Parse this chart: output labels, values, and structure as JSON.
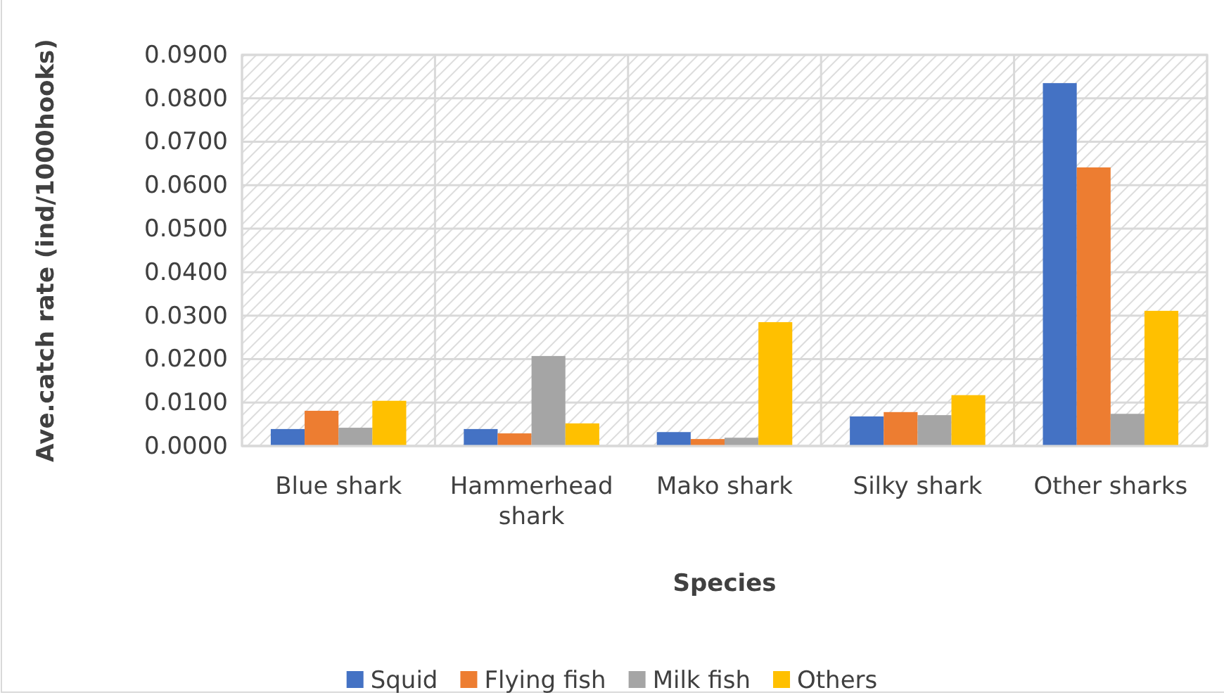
{
  "chart_data": {
    "type": "bar",
    "xlabel": "Species",
    "ylabel": "Ave.catch rate (ind/1000hooks)",
    "categories": [
      "Blue shark",
      "Hammerhead shark",
      "Mako shark",
      "Silky shark",
      "Other sharks"
    ],
    "series": [
      {
        "name": "Squid",
        "color": "#4472c4",
        "values": [
          0.0039,
          0.0039,
          0.0032,
          0.0068,
          0.0835
        ]
      },
      {
        "name": "Flying fish",
        "color": "#ed7d31",
        "values": [
          0.0081,
          0.0029,
          0.0016,
          0.0078,
          0.0641
        ]
      },
      {
        "name": "Milk fish",
        "color": "#a5a5a5",
        "values": [
          0.0042,
          0.0207,
          0.0019,
          0.0071,
          0.0074
        ]
      },
      {
        "name": "Others",
        "color": "#ffc000",
        "values": [
          0.0104,
          0.0052,
          0.0285,
          0.0117,
          0.0311
        ]
      }
    ],
    "ylim": [
      0,
      0.09
    ],
    "yticks": [
      {
        "value": 0,
        "label": "0.0000"
      },
      {
        "value": 0.01,
        "label": "0.0100"
      },
      {
        "value": 0.02,
        "label": "0.0200"
      },
      {
        "value": 0.03,
        "label": "0.0300"
      },
      {
        "value": 0.04,
        "label": "0.0400"
      },
      {
        "value": 0.05,
        "label": "0.0500"
      },
      {
        "value": 0.06,
        "label": "0.0600"
      },
      {
        "value": 0.07,
        "label": "0.0700"
      },
      {
        "value": 0.08,
        "label": "0.0800"
      },
      {
        "value": 0.09,
        "label": "0.0900"
      }
    ],
    "grid": true,
    "legend": "bottom"
  }
}
